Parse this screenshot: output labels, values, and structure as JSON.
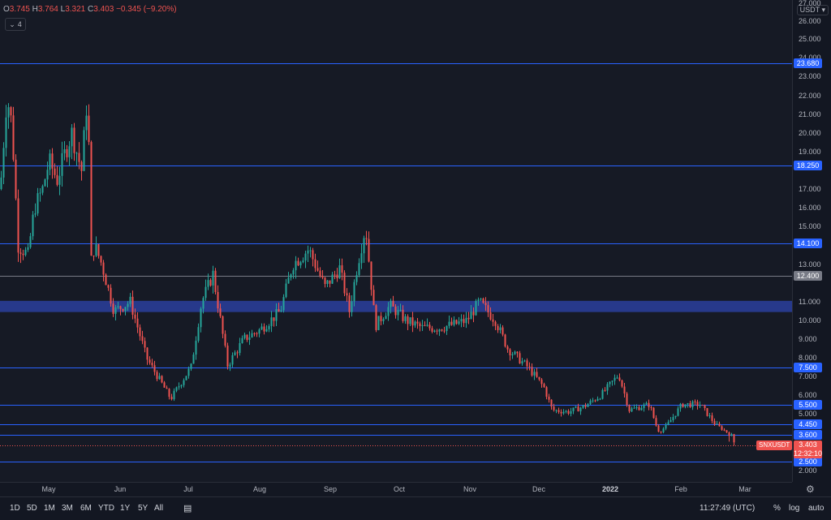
{
  "legend": {
    "o_label": "O",
    "o_value": "3.745",
    "h_label": "H",
    "h_value": "3.764",
    "l_label": "L",
    "l_value": "3.321",
    "c_label": "C",
    "c_value": "3.403",
    "change": "−0.345 (−9.20%)",
    "indicator_count": "4"
  },
  "currency": "USDT",
  "symbol_tag": "SNXUSDT",
  "last_price": "3.403",
  "countdown": "12:32:10",
  "price_ticks": [
    "27.000",
    "26.000",
    "25.000",
    "24.000",
    "23.000",
    "22.000",
    "21.000",
    "20.000",
    "19.000",
    "17.000",
    "16.000",
    "15.000",
    "13.000",
    "11.000",
    "10.000",
    "9.000",
    "8.000",
    "7.000",
    "6.000",
    "5.000",
    "2.000"
  ],
  "level_badges": [
    {
      "label": "23.680",
      "style": "blue"
    },
    {
      "label": "18.250",
      "style": "blue"
    },
    {
      "label": "14.100",
      "style": "blue"
    },
    {
      "label": "12.400",
      "style": "gray"
    },
    {
      "label": "7.500",
      "style": "blue"
    },
    {
      "label": "5.500",
      "style": "blue"
    },
    {
      "label": "4.450",
      "style": "blue"
    },
    {
      "label": "3.600",
      "style": "blue"
    },
    {
      "label": "2.500",
      "style": "blue"
    }
  ],
  "time_labels": [
    {
      "text": "May",
      "bold": false
    },
    {
      "text": "Jun",
      "bold": false
    },
    {
      "text": "Jul",
      "bold": false
    },
    {
      "text": "Aug",
      "bold": false
    },
    {
      "text": "Sep",
      "bold": false
    },
    {
      "text": "Oct",
      "bold": false
    },
    {
      "text": "Nov",
      "bold": false
    },
    {
      "text": "Dec",
      "bold": false
    },
    {
      "text": "2022",
      "bold": true
    },
    {
      "text": "Feb",
      "bold": false
    },
    {
      "text": "Mar",
      "bold": false
    }
  ],
  "timeframes": [
    "1D",
    "5D",
    "1M",
    "3M",
    "6M",
    "YTD",
    "1Y",
    "5Y",
    "All"
  ],
  "clock": "11:27:49 (UTC)",
  "percent_label": "%",
  "log_label": "log",
  "auto_label": "auto",
  "colors": {
    "up": "#26a69a",
    "down": "#ef5350",
    "level": "#2962ff",
    "zone": "#2a3f9d"
  },
  "zone": {
    "low": 10.45,
    "high": 11.05
  },
  "levels": [
    23.68,
    18.25,
    14.1,
    12.4,
    7.5,
    5.5,
    4.45,
    3.6,
    2.5
  ],
  "anchors": [
    [
      0,
      17
    ],
    [
      8,
      22
    ],
    [
      14,
      20.5
    ],
    [
      22,
      14
    ],
    [
      34,
      13.5
    ],
    [
      42,
      16
    ],
    [
      52,
      17
    ],
    [
      60,
      18.5
    ],
    [
      70,
      17.5
    ],
    [
      80,
      19
    ],
    [
      88,
      20
    ],
    [
      100,
      18
    ],
    [
      108,
      22.5
    ],
    [
      111,
      13
    ],
    [
      116,
      14
    ],
    [
      125,
      13
    ],
    [
      140,
      10.5
    ],
    [
      160,
      11
    ],
    [
      180,
      8
    ],
    [
      210,
      5.8
    ],
    [
      220,
      6.5
    ],
    [
      235,
      7.5
    ],
    [
      248,
      11
    ],
    [
      262,
      12.5
    ],
    [
      280,
      7.6
    ],
    [
      300,
      9
    ],
    [
      320,
      9.5
    ],
    [
      345,
      10.5
    ],
    [
      360,
      13
    ],
    [
      380,
      13.8
    ],
    [
      400,
      11.8
    ],
    [
      418,
      12.8
    ],
    [
      430,
      10.5
    ],
    [
      440,
      13
    ],
    [
      450,
      15
    ],
    [
      462,
      9.7
    ],
    [
      480,
      10.8
    ],
    [
      500,
      10
    ],
    [
      520,
      9.6
    ],
    [
      540,
      9.6
    ],
    [
      560,
      9.8
    ],
    [
      575,
      10
    ],
    [
      590,
      11
    ],
    [
      610,
      10
    ],
    [
      625,
      8.5
    ],
    [
      650,
      7.5
    ],
    [
      670,
      6.4
    ],
    [
      680,
      5.2
    ],
    [
      700,
      5.1
    ],
    [
      720,
      5.4
    ],
    [
      740,
      6
    ],
    [
      762,
      7.1
    ],
    [
      775,
      5.2
    ],
    [
      800,
      5.5
    ],
    [
      812,
      3.8
    ],
    [
      825,
      4.6
    ],
    [
      840,
      5.5
    ],
    [
      862,
      5.5
    ],
    [
      880,
      4.5
    ],
    [
      900,
      3.6
    ],
    [
      906,
      3.4
    ]
  ]
}
